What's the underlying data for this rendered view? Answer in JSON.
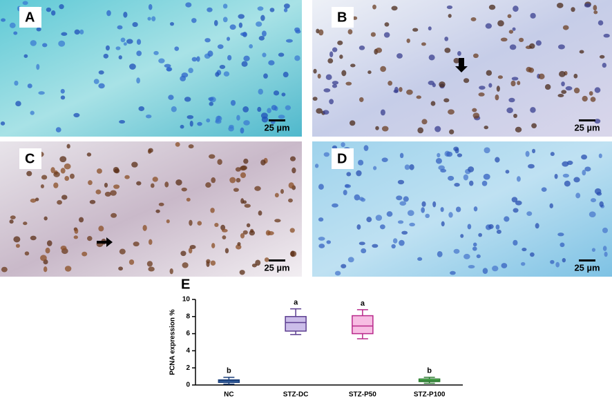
{
  "panels": [
    {
      "label": "A",
      "scale": "25 µm"
    },
    {
      "label": "B",
      "scale": "25 µm"
    },
    {
      "label": "C",
      "scale": "25 µm"
    },
    {
      "label": "D",
      "scale": "25 µm"
    }
  ],
  "chart_data": {
    "type": "box",
    "panel_label": "E",
    "y_label": "PCNA expression %",
    "categories": [
      "NC",
      "STZ-DC",
      "STZ-P50",
      "STZ-P100"
    ],
    "boxes": [
      {
        "min": 0.1,
        "q1": 0.3,
        "median": 0.5,
        "q3": 0.6,
        "max": 0.9,
        "fill": "#3f6fb0",
        "stroke": "#1b3f7a"
      },
      {
        "min": 5.9,
        "q1": 6.3,
        "median": 7.3,
        "q3": 8.0,
        "max": 8.9,
        "fill": "#cbbde9",
        "stroke": "#5b3d8f"
      },
      {
        "min": 5.4,
        "q1": 6.0,
        "median": 6.9,
        "q3": 8.1,
        "max": 8.8,
        "fill": "#f7bde3",
        "stroke": "#b8288a"
      },
      {
        "min": 0.2,
        "q1": 0.4,
        "median": 0.5,
        "q3": 0.7,
        "max": 0.9,
        "fill": "#5cbf5c",
        "stroke": "#2e7d32"
      }
    ],
    "group_labels": [
      "b",
      "a",
      "a",
      "b"
    ],
    "ylim": [
      0,
      10
    ],
    "yticks": [
      0,
      2,
      4,
      6,
      8,
      10
    ]
  }
}
